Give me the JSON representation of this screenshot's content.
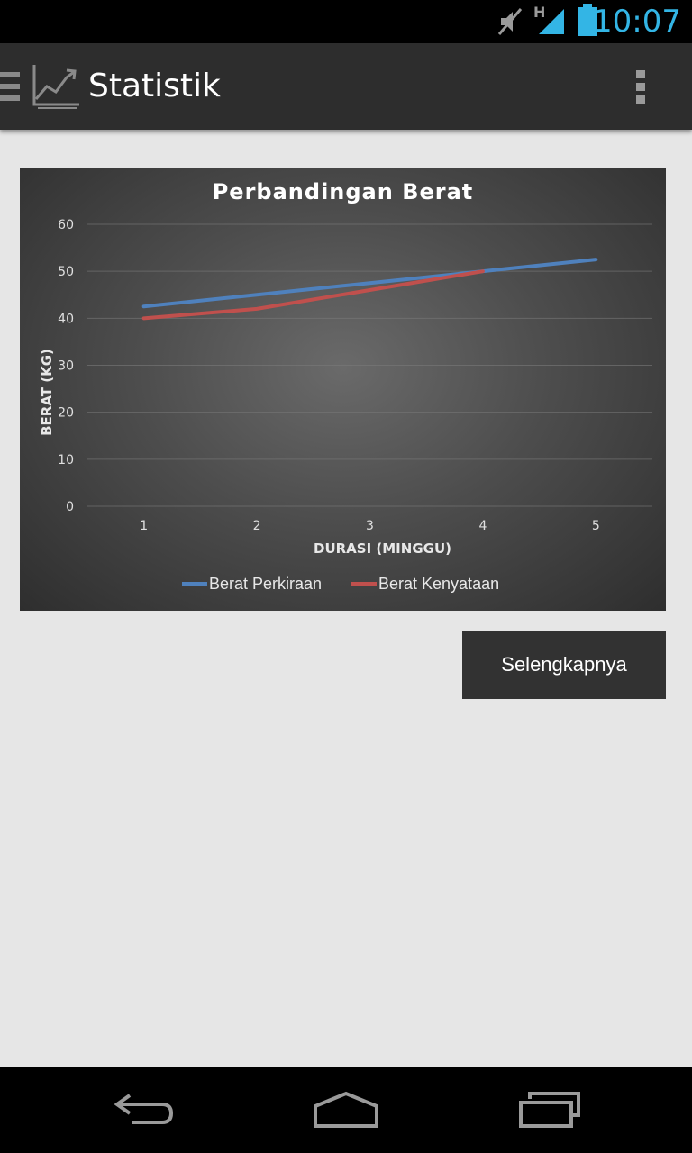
{
  "status_bar": {
    "time": "10:07",
    "network_type": "H",
    "icons": [
      "mute-icon",
      "signal-icon",
      "battery-icon"
    ]
  },
  "action_bar": {
    "title": "Statistik",
    "icons": [
      "menu-icon",
      "chart-icon",
      "overflow-menu-icon"
    ]
  },
  "colors": {
    "accent": "#33b5e5",
    "series_perkiraan": "#4f81bd",
    "series_kenyataan": "#c0504d"
  },
  "chart_data": {
    "type": "line",
    "title": "Perbandingan Berat",
    "xlabel": "DURASI (MINGGU)",
    "ylabel": "BERAT (KG)",
    "categories": [
      "1",
      "2",
      "3",
      "4",
      "5"
    ],
    "y_ticks": [
      "0",
      "10",
      "20",
      "30",
      "40",
      "50",
      "60"
    ],
    "ylim": [
      0,
      60
    ],
    "grid": true,
    "legend_position": "bottom",
    "series": [
      {
        "name": "Berat Perkiraan",
        "color": "#4f81bd",
        "values": [
          42.5,
          45,
          47.5,
          50,
          52.5
        ]
      },
      {
        "name": "Berat Kenyataan",
        "color": "#c0504d",
        "values": [
          40,
          42,
          46,
          50,
          null
        ]
      }
    ]
  },
  "more_button": {
    "label": "Selengkapnya"
  },
  "nav_bar": {
    "icons": [
      "back-icon",
      "home-icon",
      "recent-apps-icon"
    ]
  }
}
